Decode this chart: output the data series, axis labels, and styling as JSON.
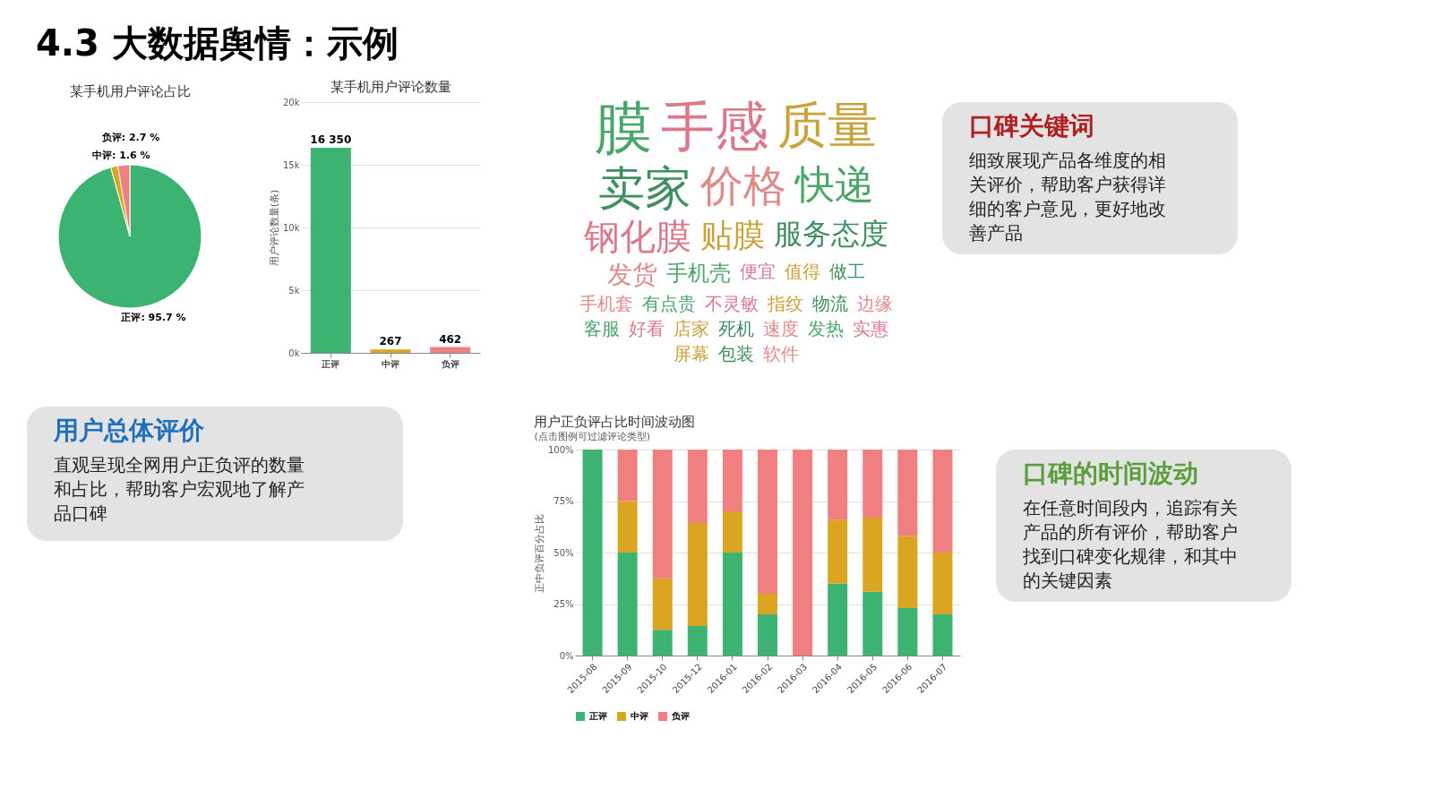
{
  "chart_data": [
    {
      "type": "other",
      "title": "4.3 大数据舆情：示例"
    },
    {
      "type": "pie",
      "title": "某手机用户评论占比",
      "categories": [
        "正评",
        "中评",
        "负评"
      ],
      "values": [
        95.7,
        1.6,
        2.7
      ],
      "colors": [
        "#3cb371",
        "#daa520",
        "#f08080"
      ],
      "value_labels": [
        ": 95.7 %",
        ": 1.6 %",
        ": 2.7 %"
      ]
    },
    {
      "type": "bar",
      "title": "某手机用户评论数量",
      "ylabel": "用户评论数量(条)",
      "categories": [
        "正评",
        "中评",
        "负评"
      ],
      "values": [
        16350,
        267,
        462
      ],
      "colors": [
        "#3cb371",
        "#daa520",
        "#f08080"
      ],
      "value_labels": [
        "16 350",
        "267",
        "462"
      ],
      "ylim": [
        0,
        20000
      ],
      "yticks": [
        {
          "value": 0,
          "label": "0k"
        },
        {
          "value": 5000,
          "label": "5k"
        },
        {
          "value": 10000,
          "label": "10k"
        },
        {
          "value": 15000,
          "label": "15k"
        },
        {
          "value": 20000,
          "label": "20k"
        }
      ],
      "grid": "y"
    },
    {
      "type": "other",
      "annotations": [
        "膜",
        "手感",
        "质量",
        "卖家",
        "价格",
        "快递",
        "钢化膜",
        "贴膜",
        "服务态度",
        "发货",
        "手机壳",
        "便宜",
        "值得",
        "做工",
        "手机套",
        "有点贵",
        "不灵敏",
        "指纹",
        "物流",
        "边缘",
        "客服",
        "好看",
        "店家",
        "死机",
        "速度",
        "发热",
        "实惠",
        "屏幕",
        "包装",
        "软件"
      ]
    },
    {
      "type": "bar",
      "title": "用户正负评占比时间波动图",
      "subtitle": "(点击图例可过滤评论类型)",
      "ylabel": "正中负评百分占比",
      "categories": [
        "2015-08",
        "2015-09",
        "2015-10",
        "2015-12",
        "2016-01",
        "2016-02",
        "2016-03",
        "2016-04",
        "2016-05",
        "2016-06",
        "2016-07"
      ],
      "stacked": true,
      "ylim": [
        0,
        100
      ],
      "yticks": [
        {
          "value": 0,
          "label": "0%"
        },
        {
          "value": 25,
          "label": "25%"
        },
        {
          "value": 50,
          "label": "50%"
        },
        {
          "value": 75,
          "label": "75%"
        },
        {
          "value": 100,
          "label": "100%"
        }
      ],
      "grid": "y",
      "legend": "bottom",
      "series": [
        {
          "name": "正评",
          "color": "#3cb371",
          "values": [
            100,
            50,
            12.5,
            14.3,
            50,
            20,
            0,
            35,
            31,
            23,
            20
          ]
        },
        {
          "name": "中评",
          "color": "#daa520",
          "values": [
            0,
            25,
            25,
            50,
            20,
            10,
            0,
            31,
            36,
            35,
            30
          ]
        },
        {
          "name": "负评",
          "color": "#f08080",
          "values": [
            0,
            25,
            62.5,
            35.7,
            30,
            70,
            100,
            34,
            33,
            42,
            50
          ]
        }
      ]
    },
    {
      "type": "other",
      "title": "用户总体评价",
      "annotations": [
        "直观呈现全网用户正负评的数量",
        "和占比，帮助客户宏观地了解产",
        "品口碑"
      ]
    },
    {
      "type": "other",
      "title": "口碑关键词",
      "annotations": [
        "细致展现产品各维度的相",
        "关评价，帮助客户获得详",
        "细的客户意见，更好地改",
        "善产品"
      ]
    },
    {
      "type": "other",
      "title": "口碑的时间波动",
      "annotations": [
        "在任意时间段内，追踪有关",
        "产品的所有评价，帮助客户",
        "找到口碑变化规律，和其中",
        "的关键因素"
      ]
    }
  ]
}
